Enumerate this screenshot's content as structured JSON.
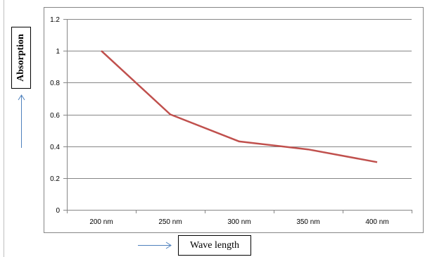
{
  "chart_data": {
    "type": "line",
    "categories": [
      "200 nm",
      "250 nm",
      "300 nm",
      "350 nm",
      "400 nm"
    ],
    "series": [
      {
        "values": [
          1.0,
          0.6,
          0.43,
          0.38,
          0.3
        ],
        "color": "#c0504d"
      }
    ],
    "xlabel": "Wave length",
    "ylabel": "Absorption",
    "ylim": [
      0,
      1.2
    ],
    "yticks": [
      "0",
      "0.2",
      "0.4",
      "0.6",
      "0.8",
      "1",
      "1.2"
    ],
    "grid": true,
    "legend": "none",
    "arrow_color": "#4f81bd"
  }
}
